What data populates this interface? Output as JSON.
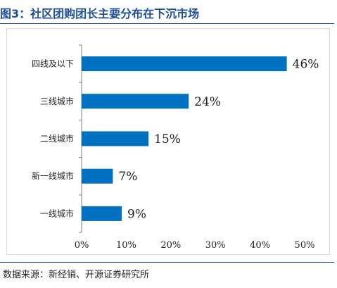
{
  "figure": {
    "title": "图3：社区团购团长主要分布在下沉市场",
    "source": "数据来源：新经销、开源证券研究所"
  },
  "chart_data": {
    "type": "bar",
    "orientation": "horizontal",
    "categories": [
      "四线及以下",
      "三线城市",
      "二线城市",
      "新一线城市",
      "一线城市"
    ],
    "values": [
      46,
      24,
      15,
      7,
      9
    ],
    "value_labels": [
      "46%",
      "24%",
      "15%",
      "7%",
      "9%"
    ],
    "xlim": [
      0,
      50
    ],
    "xticks": [
      0,
      10,
      20,
      30,
      40,
      50
    ],
    "xtick_labels": [
      "0%",
      "10%",
      "20%",
      "30%",
      "40%",
      "50%"
    ],
    "grid": false,
    "bar_color": "#0070c0"
  }
}
